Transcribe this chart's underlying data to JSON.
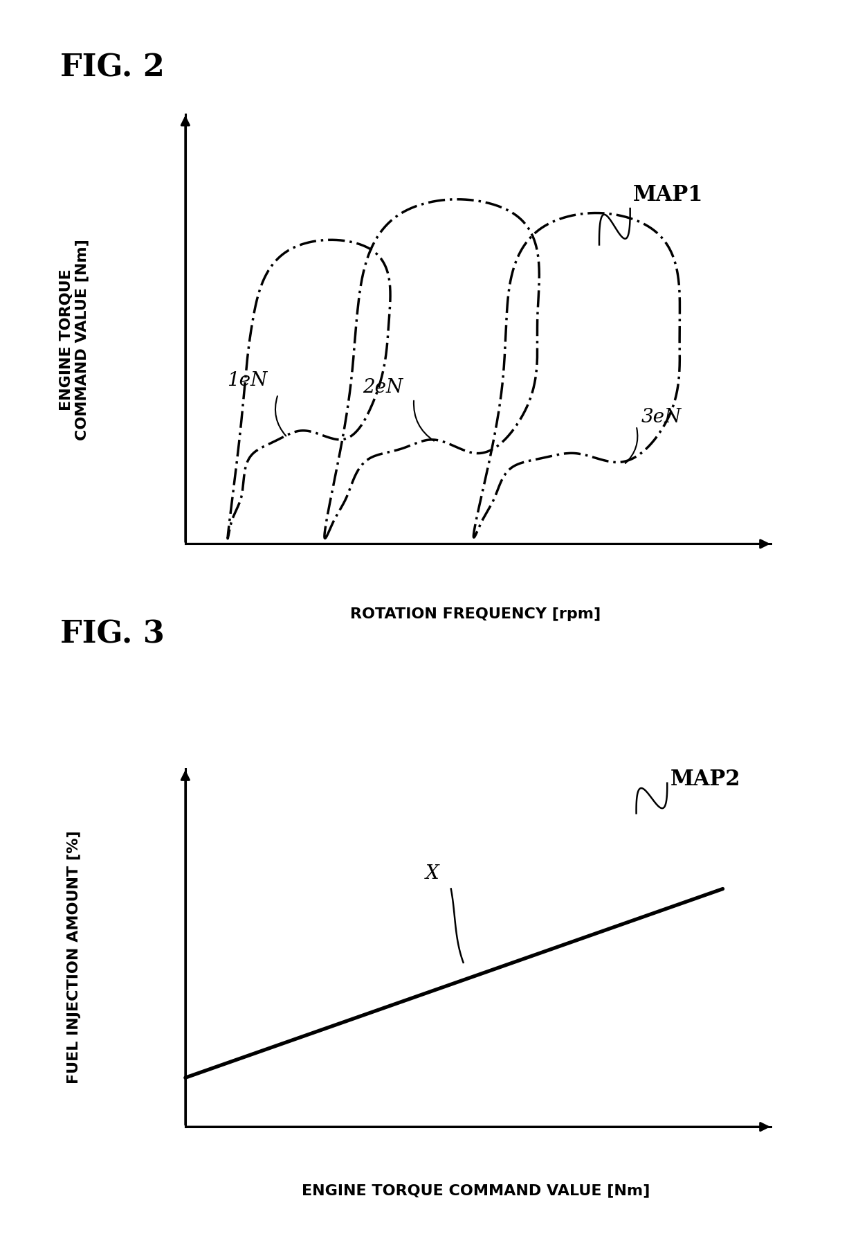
{
  "fig2_title": "FIG. 2",
  "fig3_title": "FIG. 3",
  "fig2_xlabel": "ROTATION FREQUENCY [rpm]",
  "fig2_ylabel": "ENGINE TORQUE\nCOMMAND VALUE [Nm]",
  "fig3_xlabel": "ENGINE TORQUE COMMAND VALUE [Nm]",
  "fig3_ylabel": "FUEL INJECTION AMOUNT [%]",
  "map1_label": "MAP1",
  "map2_label": "MAP2",
  "label_1eN": "1eN",
  "label_2eN": "2eN",
  "label_3eN": "3eN",
  "label_X": "X",
  "bg_color": "#ffffff",
  "line_color": "#000000",
  "title_fontsize": 32,
  "axis_label_fontsize": 16,
  "map_label_fontsize": 22,
  "curve_label_fontsize": 20
}
